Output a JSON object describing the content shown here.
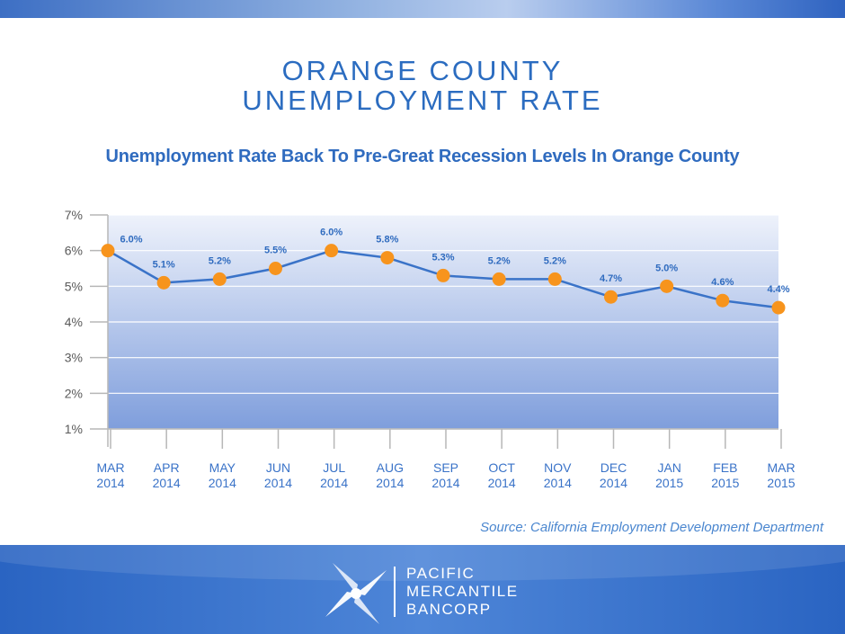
{
  "header": {
    "title_line1": "ORANGE COUNTY",
    "title_line2": "UNEMPLOYMENT RATE"
  },
  "chart_data": {
    "type": "line",
    "title": "Unemployment Rate Back To Pre-Great Recession Levels In Orange County",
    "xlabel": "",
    "ylabel": "",
    "categories": [
      [
        "MAR",
        "2014"
      ],
      [
        "APR",
        "2014"
      ],
      [
        "MAY",
        "2014"
      ],
      [
        "JUN",
        "2014"
      ],
      [
        "JUL",
        "2014"
      ],
      [
        "AUG",
        "2014"
      ],
      [
        "SEP",
        "2014"
      ],
      [
        "OCT",
        "2014"
      ],
      [
        "NOV",
        "2014"
      ],
      [
        "DEC",
        "2014"
      ],
      [
        "JAN",
        "2015"
      ],
      [
        "FEB",
        "2015"
      ],
      [
        "MAR",
        "2015"
      ]
    ],
    "series": [
      {
        "name": "Unemployment Rate",
        "values": [
          6.0,
          5.1,
          5.2,
          5.5,
          6.0,
          5.8,
          5.3,
          5.2,
          5.2,
          4.7,
          5.0,
          4.6,
          4.4
        ],
        "labels": [
          "6.0%",
          "5.1%",
          "5.2%",
          "5.5%",
          "6.0%",
          "5.8%",
          "5.3%",
          "5.2%",
          "5.2%",
          "4.7%",
          "5.0%",
          "4.6%",
          "4.4%"
        ]
      }
    ],
    "yticks": [
      1,
      2,
      3,
      4,
      5,
      6,
      7
    ],
    "ytick_labels": [
      "1%",
      "2%",
      "3%",
      "4%",
      "5%",
      "6%",
      "7%"
    ],
    "ylim": [
      1,
      7
    ],
    "grid": true,
    "colors": {
      "line": "#3a73c8",
      "marker": "#f7941d",
      "label": "#2f6bbf",
      "axis": "#b7b7b7",
      "tick_text": "#5a5a5a",
      "category_text": "#3a73c8",
      "fill_top": "#eef2fb",
      "fill_bottom": "#7f9edc"
    }
  },
  "source_text": "Source: California Employment Development Department",
  "footer": {
    "logo_line1": "PACIFIC",
    "logo_line2": "MERCANTILE",
    "logo_line3": "BANCORP"
  }
}
